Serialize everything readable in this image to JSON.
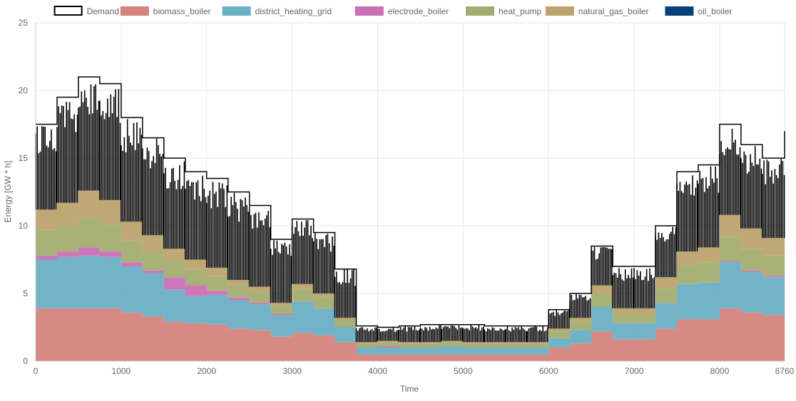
{
  "chart_data": {
    "type": "area",
    "title": "",
    "xlabel": "Time",
    "ylabel": "Energy [GW * h]",
    "xlim": [
      0,
      8760
    ],
    "ylim": [
      0,
      25
    ],
    "x_ticks": [
      "0",
      "1000",
      "2000",
      "3000",
      "4000",
      "5000",
      "6000",
      "7000",
      "8000",
      "8760"
    ],
    "y_ticks": [
      "0",
      "5",
      "10",
      "15",
      "20",
      "25"
    ],
    "grid": true,
    "legend_position": "top",
    "stacked": true,
    "x": [
      0,
      250,
      500,
      750,
      1000,
      1250,
      1500,
      1750,
      2000,
      2250,
      2500,
      2750,
      3000,
      3250,
      3500,
      3750,
      4000,
      4250,
      4500,
      4750,
      5000,
      5250,
      5500,
      5750,
      6000,
      6250,
      6500,
      6750,
      7000,
      7250,
      7500,
      7750,
      8000,
      8250,
      8500,
      8760
    ],
    "demand": {
      "name": "Demand",
      "color": "#000000",
      "values": [
        17.5,
        19.5,
        21.0,
        20.5,
        18.0,
        16.5,
        15.0,
        14.0,
        13.5,
        12.5,
        11.5,
        9.0,
        10.5,
        9.5,
        6.8,
        2.6,
        2.5,
        2.6,
        2.7,
        2.7,
        2.7,
        2.6,
        2.6,
        2.6,
        3.8,
        5.0,
        8.5,
        7.0,
        7.0,
        10.0,
        14.0,
        14.5,
        17.5,
        16.0,
        15.0,
        17.0
      ]
    },
    "series": [
      {
        "name": "biomass_boiler",
        "color": "#d4847c",
        "values": [
          3.9,
          3.9,
          3.9,
          3.9,
          3.6,
          3.3,
          2.9,
          2.8,
          2.7,
          2.4,
          2.3,
          1.8,
          2.1,
          1.9,
          1.4,
          0.5,
          0.5,
          0.5,
          0.5,
          0.5,
          0.5,
          0.5,
          0.5,
          0.5,
          1.0,
          1.3,
          2.2,
          1.6,
          1.6,
          2.4,
          3.1,
          3.1,
          3.9,
          3.6,
          3.4,
          4.0
        ]
      },
      {
        "name": "district_heating_grid",
        "color": "#6aafc4",
        "values": [
          3.6,
          3.8,
          3.9,
          3.8,
          3.4,
          3.2,
          2.4,
          2.0,
          2.2,
          2.1,
          1.9,
          1.6,
          2.3,
          2.0,
          1.1,
          0.5,
          0.5,
          0.5,
          0.5,
          0.6,
          0.5,
          0.5,
          0.5,
          0.5,
          0.7,
          1.0,
          1.8,
          1.2,
          1.2,
          1.9,
          2.6,
          2.7,
          3.4,
          3.0,
          2.8,
          3.5
        ]
      },
      {
        "name": "electrode_boiler",
        "color": "#cb6fb5",
        "values": [
          0.3,
          0.4,
          0.6,
          0.4,
          0.3,
          0.2,
          0.9,
          0.8,
          0.3,
          0.2,
          0.1,
          0.1,
          0.0,
          0.0,
          0.0,
          0.0,
          0.1,
          0.0,
          0.0,
          0.0,
          0.0,
          0.0,
          0.0,
          0.0,
          0.0,
          0.0,
          0.0,
          0.0,
          0.0,
          0.0,
          0.0,
          0.0,
          0.1,
          0.1,
          0.1,
          0.2
        ]
      },
      {
        "name": "heat_pump",
        "color": "#a3ad70",
        "values": [
          1.9,
          1.9,
          2.2,
          2.0,
          1.6,
          1.4,
          1.3,
          1.2,
          1.1,
          0.9,
          0.8,
          0.6,
          0.9,
          0.8,
          0.5,
          0.3,
          0.3,
          0.3,
          0.3,
          0.3,
          0.3,
          0.3,
          0.3,
          0.3,
          0.5,
          0.6,
          1.0,
          0.7,
          0.7,
          1.1,
          1.4,
          1.5,
          1.8,
          1.6,
          1.5,
          1.8
        ]
      },
      {
        "name": "natural_gas_boiler",
        "color": "#bda36e",
        "values": [
          1.5,
          1.7,
          2.0,
          1.8,
          1.4,
          1.2,
          0.8,
          0.7,
          0.6,
          0.4,
          0.4,
          0.2,
          0.4,
          0.3,
          0.2,
          0.1,
          0.1,
          0.1,
          0.1,
          0.1,
          0.1,
          0.1,
          0.1,
          0.1,
          0.2,
          0.3,
          0.6,
          0.4,
          0.4,
          0.8,
          1.0,
          1.1,
          1.6,
          1.5,
          1.3,
          1.6
        ]
      },
      {
        "name": "oil_boiler",
        "color": "#08407a",
        "values": [
          0.0,
          0.0,
          0.0,
          0.0,
          0.0,
          0.0,
          0.0,
          0.0,
          0.0,
          0.0,
          0.0,
          0.0,
          0.0,
          0.0,
          0.0,
          0.0,
          0.0,
          0.0,
          0.0,
          0.0,
          0.0,
          0.0,
          0.0,
          0.0,
          0.0,
          0.0,
          0.0,
          0.0,
          0.0,
          0.0,
          0.0,
          0.0,
          0.0,
          0.0,
          0.0,
          0.0
        ]
      }
    ]
  }
}
